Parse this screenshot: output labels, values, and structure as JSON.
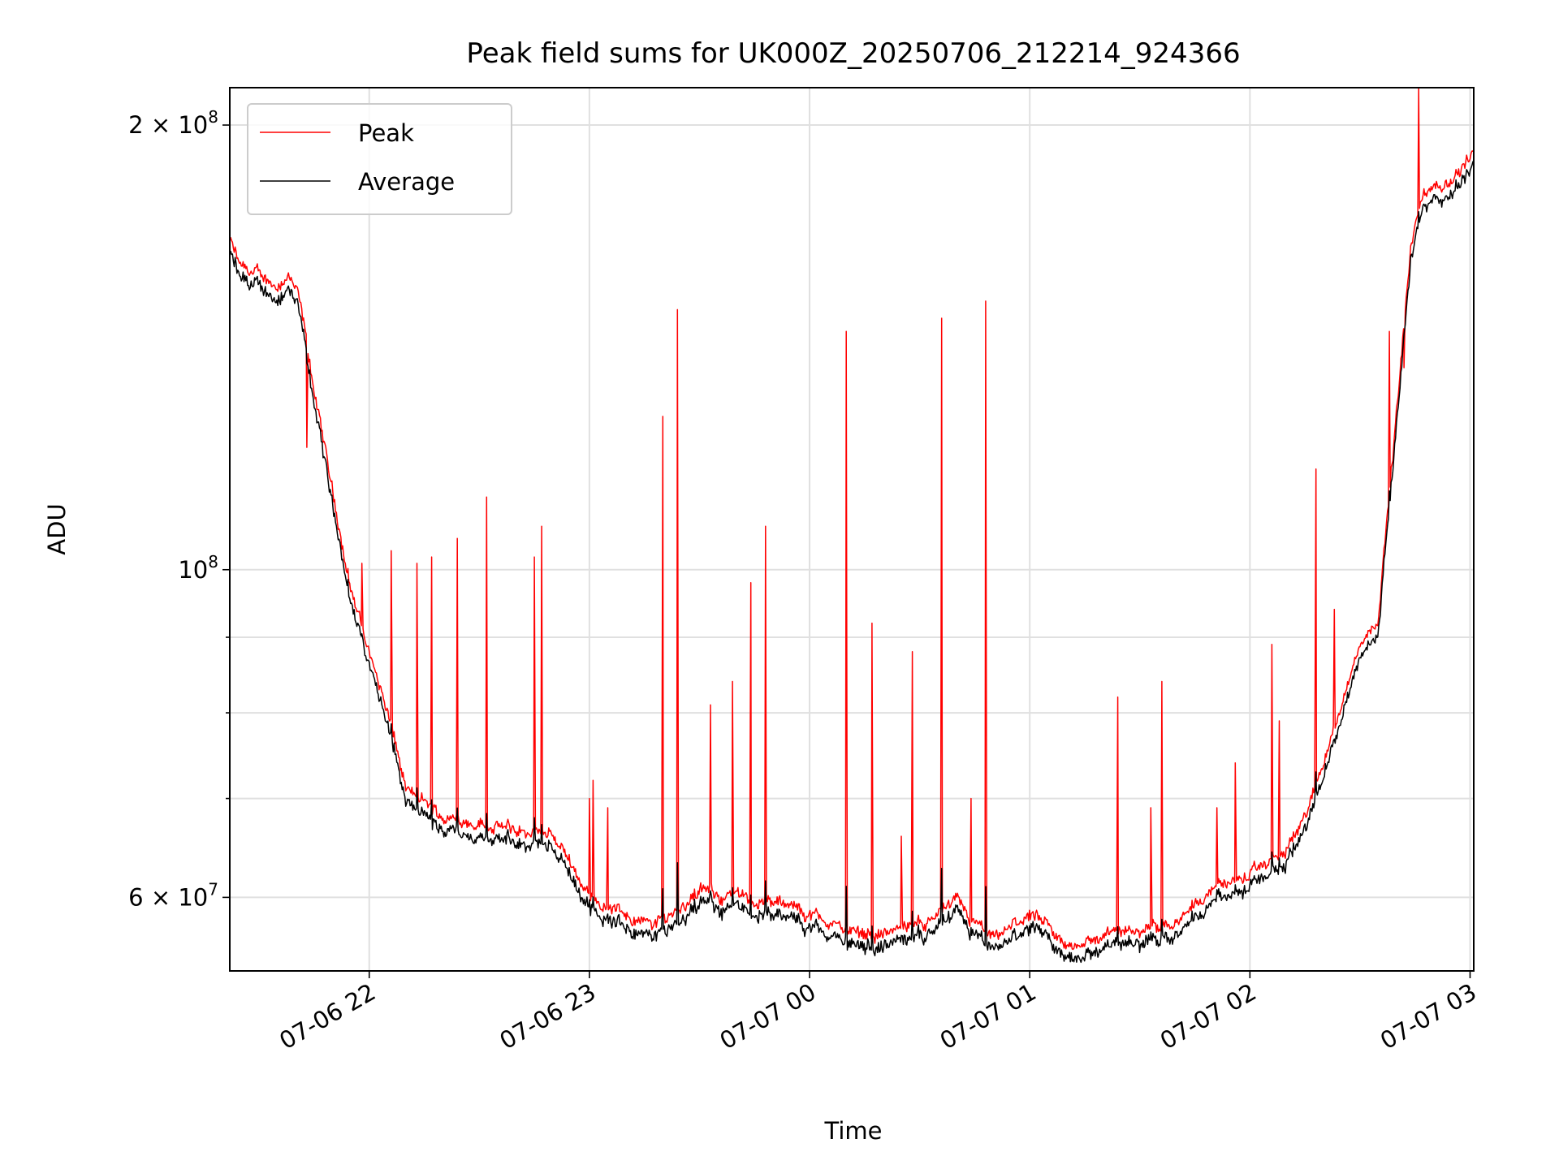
{
  "chart_data": {
    "type": "line",
    "title": "Peak field sums for UK000Z_20250706_212214_924366",
    "xlabel": "Time",
    "ylabel": "ADU",
    "yscale": "log",
    "xlim": [
      "2025-07-06 21:22",
      "2025-07-07 03:01"
    ],
    "ylim": [
      53500000,
      212000000
    ],
    "grid": true,
    "legend_position": "upper left",
    "x_ticks": [
      {
        "value": "2025-07-06 22:00",
        "label": "07-06 22"
      },
      {
        "value": "2025-07-06 23:00",
        "label": "07-06 23"
      },
      {
        "value": "2025-07-07 00:00",
        "label": "07-07 00"
      },
      {
        "value": "2025-07-07 01:00",
        "label": "07-07 01"
      },
      {
        "value": "2025-07-07 02:00",
        "label": "07-07 02"
      },
      {
        "value": "2025-07-07 03:00",
        "label": "07-07 03"
      }
    ],
    "y_ticks": [
      {
        "value": 200000000,
        "base": "2",
        "exp": "8",
        "label": "2 × 10^8"
      },
      {
        "value": 100000000,
        "base": "",
        "exp": "8",
        "label": "10^8"
      },
      {
        "value": 60000000,
        "base": "6",
        "exp": "7",
        "label": "6 × 10^7"
      }
    ],
    "y_minor_ticks": [
      70000000,
      80000000,
      90000000
    ],
    "series": [
      {
        "name": "Peak",
        "color": "#ff0000",
        "baseline": [
          [
            "2025-07-06 21:22",
            167000000
          ],
          [
            "2025-07-06 21:25",
            160000000
          ],
          [
            "2025-07-06 21:30",
            158000000
          ],
          [
            "2025-07-06 21:35",
            156000000
          ],
          [
            "2025-07-06 21:38",
            158000000
          ],
          [
            "2025-07-06 21:41",
            152000000
          ],
          [
            "2025-07-06 21:45",
            132000000
          ],
          [
            "2025-07-06 21:50",
            113000000
          ],
          [
            "2025-07-06 21:55",
            97000000
          ],
          [
            "2025-07-06 22:00",
            88000000
          ],
          [
            "2025-07-06 22:05",
            80000000
          ],
          [
            "2025-07-06 22:10",
            71000000
          ],
          [
            "2025-07-06 22:20",
            68000000
          ],
          [
            "2025-07-06 22:30",
            67500000
          ],
          [
            "2025-07-06 22:40",
            66500000
          ],
          [
            "2025-07-06 22:50",
            66000000
          ],
          [
            "2025-07-06 22:55",
            63500000
          ],
          [
            "2025-07-06 23:00",
            60000000
          ],
          [
            "2025-07-06 23:10",
            58500000
          ],
          [
            "2025-07-06 23:15",
            57500000
          ],
          [
            "2025-07-06 23:20",
            58000000
          ],
          [
            "2025-07-06 23:30",
            60500000
          ],
          [
            "2025-07-06 23:40",
            60000000
          ],
          [
            "2025-07-06 23:50",
            59500000
          ],
          [
            "2025-07-07 00:00",
            58500000
          ],
          [
            "2025-07-07 00:10",
            57000000
          ],
          [
            "2025-07-07 00:20",
            56700000
          ],
          [
            "2025-07-07 00:30",
            57500000
          ],
          [
            "2025-07-07 00:40",
            59500000
          ],
          [
            "2025-07-07 00:45",
            57500000
          ],
          [
            "2025-07-07 00:50",
            56000000
          ],
          [
            "2025-07-07 01:00",
            58500000
          ],
          [
            "2025-07-07 01:10",
            55500000
          ],
          [
            "2025-07-07 01:20",
            56500000
          ],
          [
            "2025-07-07 01:30",
            57000000
          ],
          [
            "2025-07-07 01:40",
            58000000
          ],
          [
            "2025-07-07 01:50",
            61000000
          ],
          [
            "2025-07-07 02:00",
            62000000
          ],
          [
            "2025-07-07 02:10",
            64500000
          ],
          [
            "2025-07-07 02:15",
            68000000
          ],
          [
            "2025-07-07 02:20",
            74000000
          ],
          [
            "2025-07-07 02:25",
            81000000
          ],
          [
            "2025-07-07 02:30",
            89000000
          ],
          [
            "2025-07-07 02:35",
            93000000
          ],
          [
            "2025-07-07 02:40",
            128000000
          ],
          [
            "2025-07-07 02:44",
            166000000
          ],
          [
            "2025-07-07 02:47",
            180000000
          ],
          [
            "2025-07-07 02:52",
            181000000
          ],
          [
            "2025-07-07 02:57",
            186000000
          ],
          [
            "2025-07-07 03:01",
            192000000
          ]
        ],
        "spikes": [
          [
            "2025-07-06 21:43",
            121000000
          ],
          [
            "2025-07-06 21:58",
            101000000
          ],
          [
            "2025-07-06 22:06",
            103000000
          ],
          [
            "2025-07-06 22:13",
            101000000
          ],
          [
            "2025-07-06 22:17",
            102000000
          ],
          [
            "2025-07-06 22:24",
            105000000
          ],
          [
            "2025-07-06 22:32",
            112000000
          ],
          [
            "2025-07-06 22:45",
            102000000
          ],
          [
            "2025-07-06 22:47",
            107000000
          ],
          [
            "2025-07-06 23:00",
            70000000
          ],
          [
            "2025-07-06 23:01",
            72000000
          ],
          [
            "2025-07-06 23:05",
            69000000
          ],
          [
            "2025-07-06 23:20",
            127000000
          ],
          [
            "2025-07-06 23:24",
            150000000
          ],
          [
            "2025-07-06 23:33",
            81000000
          ],
          [
            "2025-07-06 23:39",
            84000000
          ],
          [
            "2025-07-06 23:44",
            98000000
          ],
          [
            "2025-07-06 23:48",
            107000000
          ],
          [
            "2025-07-07 00:10",
            145000000
          ],
          [
            "2025-07-07 00:17",
            92000000
          ],
          [
            "2025-07-07 00:25",
            66000000
          ],
          [
            "2025-07-07 00:28",
            88000000
          ],
          [
            "2025-07-07 00:36",
            148000000
          ],
          [
            "2025-07-07 00:44",
            70000000
          ],
          [
            "2025-07-07 00:48",
            152000000
          ],
          [
            "2025-07-07 01:24",
            82000000
          ],
          [
            "2025-07-07 01:33",
            69000000
          ],
          [
            "2025-07-07 01:36",
            84000000
          ],
          [
            "2025-07-07 01:51",
            69000000
          ],
          [
            "2025-07-07 01:56",
            74000000
          ],
          [
            "2025-07-07 02:06",
            89000000
          ],
          [
            "2025-07-07 02:08",
            79000000
          ],
          [
            "2025-07-07 02:18",
            117000000
          ],
          [
            "2025-07-07 02:23",
            94000000
          ],
          [
            "2025-07-07 02:38",
            145000000
          ],
          [
            "2025-07-07 02:42",
            137000000
          ],
          [
            "2025-07-07 02:46",
            212000000
          ]
        ]
      },
      {
        "name": "Average",
        "color": "#000000",
        "baseline_ratio": 0.985
      }
    ]
  }
}
